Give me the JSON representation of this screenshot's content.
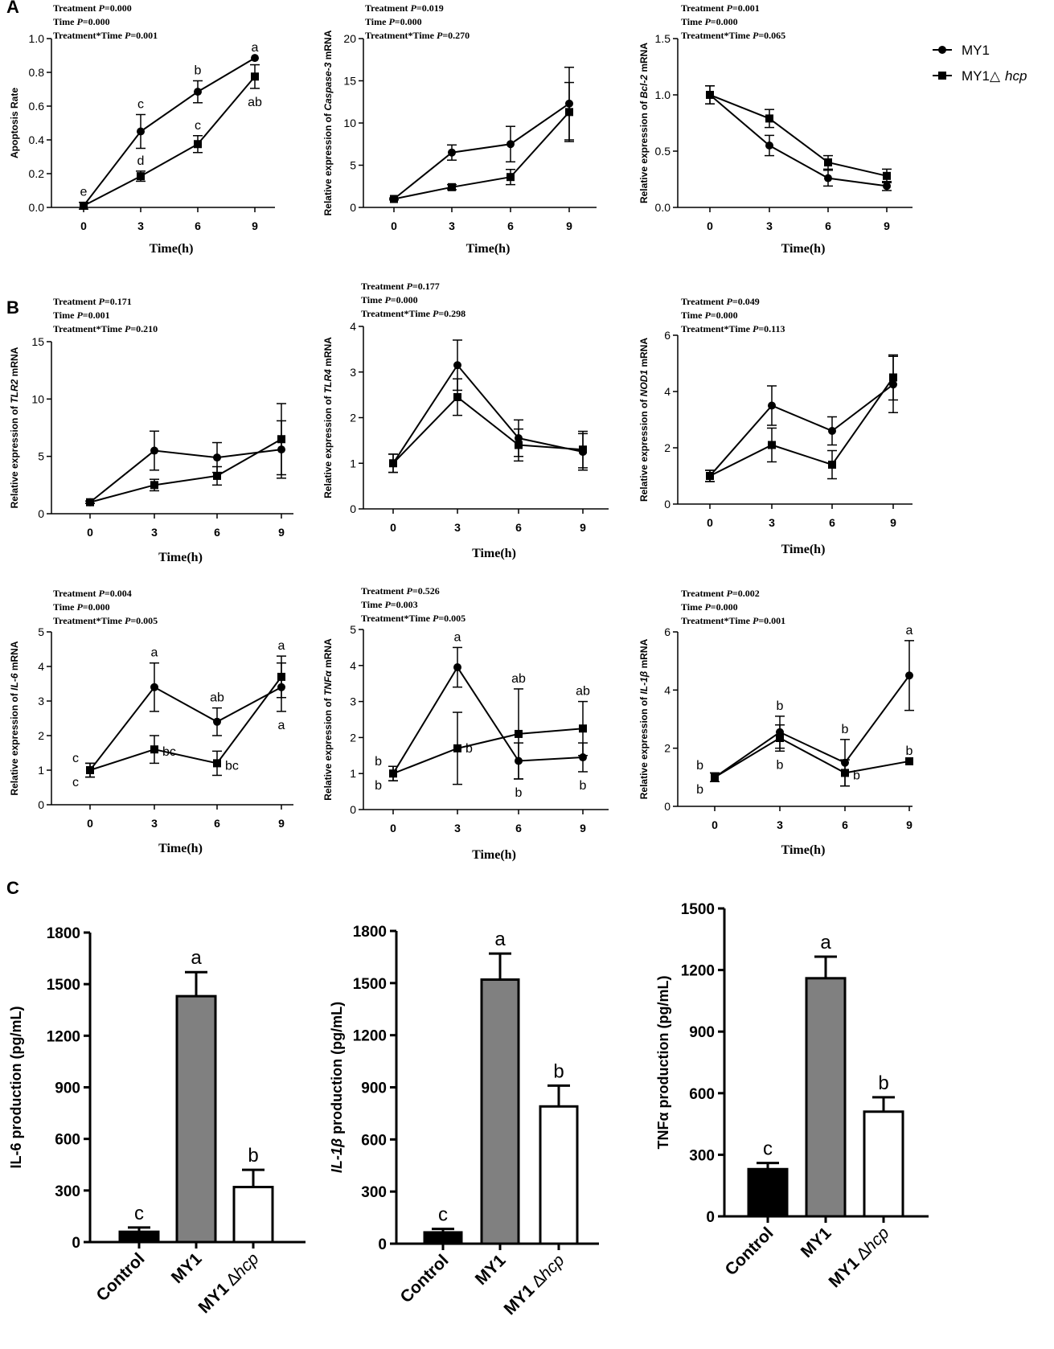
{
  "figure": {
    "panel_letters": [
      "A",
      "B",
      "C"
    ],
    "legend": {
      "entries": [
        {
          "label": "MY1",
          "marker": "circle"
        },
        {
          "label": "MY1△",
          "label_italic": "hcp",
          "marker": "square"
        }
      ]
    },
    "stat_labels": {
      "treatment": "Treatment",
      "time": "Time",
      "interaction": "Treatment*Time",
      "p": "P"
    },
    "bar_xlabel": {
      "control": "Control",
      "my1": "MY1",
      "mut_prefix": "MY1",
      "mut_symbol": "∆",
      "mut_italic": "hcp"
    },
    "colors": {
      "line": "#000000",
      "control_bar": "#000000",
      "my1_bar": "#808080",
      "mut_bar": "#ffffff"
    }
  },
  "chart_data": [
    {
      "id": "apoptosis",
      "type": "line",
      "stats": {
        "treatment": "=0.000",
        "time": "=0.000",
        "interaction": "=0.001"
      },
      "ylabel_pre": "Apoptosis Rate",
      "ylabel_it": "",
      "ylabel_post": "",
      "xlabel": "Time(h)",
      "x": [
        0,
        3,
        6,
        9
      ],
      "ylim": [
        0,
        1.0
      ],
      "yticks": [
        "0.0",
        "0.2",
        "0.4",
        "0.6",
        "0.8",
        "1.0"
      ],
      "series": [
        {
          "name": "MY1",
          "marker": "circle",
          "values": [
            0.01,
            0.45,
            0.685,
            0.885
          ],
          "errors": [
            0.02,
            0.1,
            0.065,
            0.0
          ],
          "labels": [
            "e",
            "c",
            "b",
            "a"
          ],
          "label_pos": [
            "above",
            "above",
            "above",
            "above"
          ]
        },
        {
          "name": "MY1△hcp",
          "marker": "square",
          "values": [
            0.01,
            0.185,
            0.375,
            0.775
          ],
          "errors": [
            0.0,
            0.03,
            0.05,
            0.07
          ],
          "labels": [
            "",
            "d",
            "c",
            "ab"
          ],
          "label_pos": [
            "",
            "above",
            "above",
            "below"
          ]
        }
      ]
    },
    {
      "id": "caspase3",
      "type": "line",
      "stats": {
        "treatment": "=0.019",
        "time": "=0.000",
        "interaction": "=0.270"
      },
      "ylabel_pre": "Relative expression of ",
      "ylabel_it": "Caspase-3",
      "ylabel_post": " mRNA",
      "xlabel": "Time(h)",
      "x": [
        0,
        3,
        6,
        9
      ],
      "ylim": [
        0,
        20
      ],
      "yticks": [
        "0",
        "5",
        "10",
        "15",
        "20"
      ],
      "series": [
        {
          "name": "MY1",
          "marker": "circle",
          "values": [
            1.0,
            6.5,
            7.5,
            12.3
          ],
          "errors": [
            0.1,
            0.9,
            2.1,
            4.3
          ],
          "labels": [],
          "label_pos": []
        },
        {
          "name": "MY1△hcp",
          "marker": "square",
          "values": [
            1.0,
            2.4,
            3.6,
            11.3
          ],
          "errors": [
            0.1,
            0.3,
            0.9,
            3.5
          ],
          "labels": [],
          "label_pos": []
        }
      ]
    },
    {
      "id": "bcl2",
      "type": "line",
      "stats": {
        "treatment": "=0.001",
        "time": "=0.000",
        "interaction": "=0.065"
      },
      "ylabel_pre": "Relative expression of ",
      "ylabel_it": "Bcl-2",
      "ylabel_post": " mRNA",
      "xlabel": "Time(h)",
      "x": [
        0,
        3,
        6,
        9
      ],
      "ylim": [
        0,
        1.5
      ],
      "yticks": [
        "0.0",
        "0.5",
        "1.0",
        "1.5"
      ],
      "series": [
        {
          "name": "MY1",
          "marker": "circle",
          "values": [
            1.0,
            0.55,
            0.26,
            0.19
          ],
          "errors": [
            0.08,
            0.09,
            0.07,
            0.04
          ],
          "labels": [],
          "label_pos": []
        },
        {
          "name": "MY1△hcp",
          "marker": "square",
          "values": [
            1.0,
            0.79,
            0.4,
            0.28
          ],
          "errors": [
            0.08,
            0.08,
            0.06,
            0.06
          ],
          "labels": [],
          "label_pos": []
        }
      ]
    },
    {
      "id": "tlr2",
      "type": "line",
      "stats": {
        "treatment": "=0.171",
        "time": "=0.001",
        "interaction": "=0.210"
      },
      "ylabel_pre": "Relative expression of ",
      "ylabel_it": "TLR2",
      "ylabel_post": " mRNA",
      "xlabel": "Time(h)",
      "x": [
        0,
        3,
        6,
        9
      ],
      "ylim": [
        0,
        15
      ],
      "yticks": [
        "0",
        "5",
        "10",
        "15"
      ],
      "series": [
        {
          "name": "MY1",
          "marker": "circle",
          "values": [
            1.0,
            5.5,
            4.9,
            5.6
          ],
          "errors": [
            0.1,
            1.7,
            1.3,
            2.5
          ],
          "labels": [],
          "label_pos": []
        },
        {
          "name": "MY1△hcp",
          "marker": "square",
          "values": [
            1.0,
            2.5,
            3.3,
            6.5
          ],
          "errors": [
            0.1,
            0.5,
            0.8,
            3.1
          ],
          "labels": [],
          "label_pos": []
        }
      ]
    },
    {
      "id": "tlr4",
      "type": "line",
      "stats": {
        "treatment": "=0.177",
        "time": "=0.000",
        "interaction": "=0.298"
      },
      "ylabel_pre": "Relative expression of ",
      "ylabel_it": "TLR4",
      "ylabel_post": " mRNA",
      "xlabel": "Time(h)",
      "x": [
        0,
        3,
        6,
        9
      ],
      "ylim": [
        0,
        4
      ],
      "yticks": [
        "0",
        "1",
        "2",
        "3",
        "4"
      ],
      "series": [
        {
          "name": "MY1",
          "marker": "circle",
          "values": [
            1.0,
            3.15,
            1.55,
            1.25
          ],
          "errors": [
            0.2,
            0.55,
            0.4,
            0.4
          ],
          "labels": [],
          "label_pos": []
        },
        {
          "name": "MY1△hcp",
          "marker": "square",
          "values": [
            1.0,
            2.45,
            1.4,
            1.3
          ],
          "errors": [
            0.2,
            0.4,
            0.35,
            0.4
          ],
          "labels": [],
          "label_pos": []
        }
      ]
    },
    {
      "id": "nod1",
      "type": "line",
      "stats": {
        "treatment": "=0.049",
        "time": "=0.000",
        "interaction": "=0.113"
      },
      "ylabel_pre": "Relative expression of ",
      "ylabel_it": "NOD1",
      "ylabel_post": " mRNA",
      "xlabel": "Time(h)",
      "x": [
        0,
        3,
        6,
        9
      ],
      "ylim": [
        0,
        6
      ],
      "yticks": [
        "0",
        "2",
        "4",
        "6"
      ],
      "series": [
        {
          "name": "MY1",
          "marker": "circle",
          "values": [
            1.0,
            3.5,
            2.6,
            4.25
          ],
          "errors": [
            0.2,
            0.7,
            0.5,
            1.0
          ],
          "labels": [],
          "label_pos": []
        },
        {
          "name": "MY1△hcp",
          "marker": "square",
          "values": [
            1.0,
            2.1,
            1.4,
            4.5
          ],
          "errors": [
            0.2,
            0.6,
            0.5,
            0.8
          ],
          "labels": [],
          "label_pos": []
        }
      ]
    },
    {
      "id": "il6",
      "type": "line",
      "stats": {
        "treatment": "=0.004",
        "time": "=0.000",
        "interaction": "=0.005"
      },
      "ylabel_pre": "Relative expression of ",
      "ylabel_it": "IL-6",
      "ylabel_post": " mRNA",
      "xlabel": "Time(h)",
      "x": [
        0,
        3,
        6,
        9
      ],
      "ylim": [
        0,
        5
      ],
      "yticks": [
        "0",
        "1",
        "2",
        "3",
        "4",
        "5"
      ],
      "series": [
        {
          "name": "MY1",
          "marker": "circle",
          "values": [
            1.0,
            3.4,
            2.4,
            3.4
          ],
          "errors": [
            0.2,
            0.7,
            0.4,
            0.7
          ],
          "labels": [
            "c",
            "a",
            "ab",
            "a"
          ],
          "label_pos": [
            "aboveleft",
            "above",
            "above",
            "below"
          ]
        },
        {
          "name": "MY1△hcp",
          "marker": "square",
          "values": [
            1.0,
            1.6,
            1.2,
            3.7
          ],
          "errors": [
            0.2,
            0.4,
            0.35,
            0.6
          ],
          "labels": [
            "c",
            "bc",
            "bc",
            "a"
          ],
          "label_pos": [
            "belowleft",
            "belowright",
            "belowright",
            "above"
          ]
        }
      ]
    },
    {
      "id": "tnfa",
      "type": "line",
      "stats": {
        "treatment": "=0.526",
        "time": "=0.003",
        "interaction": "=0.005"
      },
      "ylabel_pre": "Relative expression of ",
      "ylabel_it": "TNFα",
      "ylabel_post": " mRNA",
      "xlabel": "Time(h)",
      "x": [
        0,
        3,
        6,
        9
      ],
      "ylim": [
        0,
        5
      ],
      "yticks": [
        "0",
        "1",
        "2",
        "3",
        "4",
        "5"
      ],
      "series": [
        {
          "name": "MY1",
          "marker": "circle",
          "values": [
            1.0,
            3.95,
            1.35,
            1.45
          ],
          "errors": [
            0.2,
            0.55,
            0.5,
            0.4
          ],
          "labels": [
            "b",
            "a",
            "b",
            "b"
          ],
          "label_pos": [
            "aboveleft",
            "above",
            "below",
            "below"
          ]
        },
        {
          "name": "MY1△hcp",
          "marker": "square",
          "values": [
            1.0,
            1.7,
            2.1,
            2.25
          ],
          "errors": [
            0.2,
            1.0,
            1.25,
            0.75
          ],
          "labels": [
            "b",
            "b",
            "ab",
            "ab"
          ],
          "label_pos": [
            "belowleft",
            "right",
            "above",
            "above"
          ]
        }
      ]
    },
    {
      "id": "il1b",
      "type": "line",
      "stats": {
        "treatment": "=0.002",
        "time": "=0.000",
        "interaction": "=0.001"
      },
      "ylabel_pre": "Relative expression of ",
      "ylabel_it": "IL-1β",
      "ylabel_post": " mRNA",
      "xlabel": "Time(h)",
      "x": [
        0,
        3,
        6,
        9
      ],
      "ylim": [
        0,
        6
      ],
      "yticks": [
        "0",
        "2",
        "4",
        "6"
      ],
      "series": [
        {
          "name": "MY1",
          "marker": "circle",
          "values": [
            1.0,
            2.55,
            1.5,
            4.5
          ],
          "errors": [
            0.15,
            0.55,
            0.8,
            1.2
          ],
          "labels": [
            "b",
            "b",
            "b",
            "a"
          ],
          "label_pos": [
            "aboveleft",
            "above",
            "above",
            "above"
          ]
        },
        {
          "name": "MY1△hcp",
          "marker": "square",
          "values": [
            1.0,
            2.35,
            1.15,
            1.55
          ],
          "errors": [
            0.15,
            0.45,
            0.45,
            0.0
          ],
          "labels": [
            "b",
            "b",
            "b",
            "b"
          ],
          "label_pos": [
            "belowleft",
            "below",
            "belowright",
            "above"
          ]
        }
      ]
    },
    {
      "id": "il6_prod",
      "type": "bar",
      "ylabel": "IL-6 production (pg/mL)",
      "ylabel_it": "",
      "ylim": [
        0,
        1800
      ],
      "yticks": [
        "0",
        "300",
        "600",
        "900",
        "1200",
        "1500",
        "1800"
      ],
      "categories": [
        "Control",
        "MY1",
        "MY1∆hcp"
      ],
      "values": [
        60,
        1430,
        320
      ],
      "errors": [
        25,
        140,
        100
      ],
      "labels": [
        "c",
        "a",
        "b"
      ]
    },
    {
      "id": "il1b_prod",
      "type": "bar",
      "ylabel": " production (pg/mL)",
      "ylabel_it": "IL-1β",
      "ylim": [
        0,
        1800
      ],
      "yticks": [
        "0",
        "300",
        "600",
        "900",
        "1200",
        "1500",
        "1800"
      ],
      "categories": [
        "Control",
        "MY1",
        "MY1∆hcp"
      ],
      "values": [
        65,
        1520,
        790
      ],
      "errors": [
        20,
        150,
        120
      ],
      "labels": [
        "c",
        "a",
        "b"
      ]
    },
    {
      "id": "tnfa_prod",
      "type": "bar",
      "ylabel": "TNFα production (pg/mL)",
      "ylabel_it": "",
      "ylim": [
        0,
        1500
      ],
      "yticks": [
        "0",
        "300",
        "600",
        "900",
        "1200",
        "1500"
      ],
      "categories": [
        "Control",
        "MY1",
        "MY1∆hcp"
      ],
      "values": [
        230,
        1160,
        510
      ],
      "errors": [
        30,
        105,
        70
      ],
      "labels": [
        "c",
        "a",
        "b"
      ]
    }
  ]
}
